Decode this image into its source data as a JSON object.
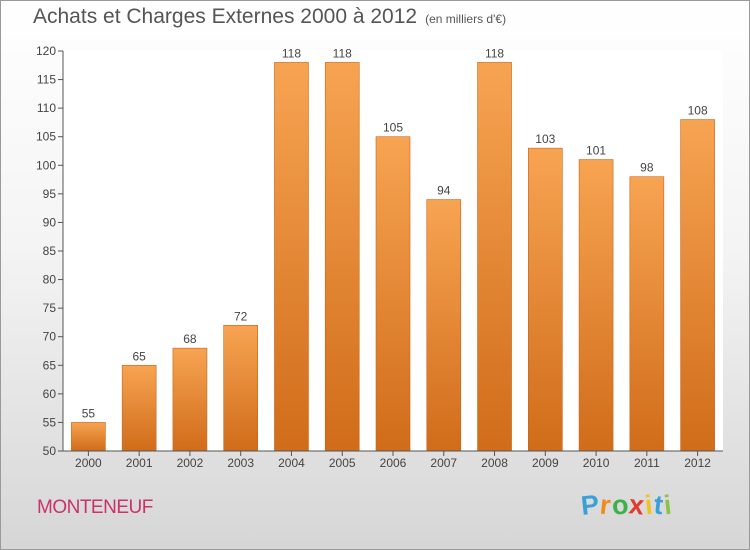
{
  "title": "Achats et Charges Externes 2000 à 2012",
  "unit": "(en milliers d'€)",
  "commune": "MONTENEUF",
  "logo": {
    "letters": [
      "P",
      "r",
      "o",
      "x",
      "i",
      "t",
      "i"
    ],
    "colors": [
      "#3aa0d8",
      "#f08a1c",
      "#3cb04a",
      "#e23b2e",
      "#f2c21b",
      "#3aa0d8",
      "#8bc34a"
    ]
  },
  "colors": {
    "bar": "#f0923a",
    "bar_dark": "#d06c1a",
    "accent": "#c8336a"
  },
  "chart_data": {
    "type": "bar",
    "categories": [
      "2000",
      "2001",
      "2002",
      "2003",
      "2004",
      "2005",
      "2006",
      "2007",
      "2008",
      "2009",
      "2010",
      "2011",
      "2012"
    ],
    "values": [
      55,
      65,
      68,
      72,
      118,
      118,
      105,
      94,
      118,
      103,
      101,
      98,
      108
    ],
    "data_labels": [
      "55",
      "65",
      "68",
      "72",
      "118",
      "118",
      "105",
      "94",
      "118",
      "103",
      "101",
      "98",
      "108"
    ],
    "title": "Achats et Charges Externes 2000 à 2012",
    "ylim": [
      50,
      120
    ],
    "yticks": [
      50,
      55,
      60,
      65,
      70,
      75,
      80,
      85,
      90,
      95,
      100,
      105,
      110,
      115,
      120
    ],
    "grid": false,
    "legend": "none"
  }
}
